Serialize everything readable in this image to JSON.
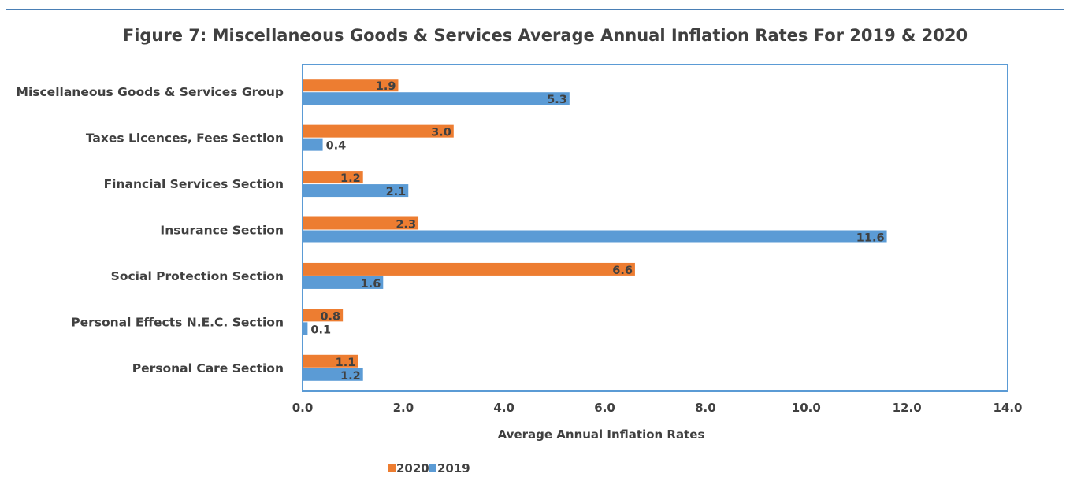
{
  "chart_data": {
    "type": "bar",
    "orientation": "horizontal",
    "title": "Figure 7: Miscellaneous Goods & Services Average Annual Inflation Rates For 2019 & 2020",
    "xlabel": "Average Annual Inflation Rates",
    "ylabel": "",
    "xlim": [
      0,
      14
    ],
    "xticks": [
      "0.0",
      "2.0",
      "4.0",
      "6.0",
      "8.0",
      "10.0",
      "12.0",
      "14.0"
    ],
    "categories": [
      "Miscellaneous Goods & Services Group",
      "Taxes Licences, Fees Section",
      "Financial Services Section",
      "Insurance Section",
      "Social Protection Section",
      "Personal Effects N.E.C. Section",
      "Personal Care Section"
    ],
    "series": [
      {
        "name": "2020",
        "color": "#ed7d31",
        "values": [
          1.9,
          3.0,
          1.2,
          2.3,
          6.6,
          0.8,
          1.1
        ],
        "labels": [
          "1.9",
          "3.0",
          "1.2",
          "2.3",
          "6.6",
          "0.8",
          "1.1"
        ]
      },
      {
        "name": "2019",
        "color": "#5b9bd5",
        "values": [
          5.3,
          0.4,
          2.1,
          11.6,
          1.6,
          0.1,
          1.2
        ],
        "labels": [
          "5.3",
          "0.4",
          "2.1",
          "11.6",
          "1.6",
          "0.1",
          "1.2"
        ]
      }
    ],
    "legend_position": "bottom",
    "grid": false
  }
}
